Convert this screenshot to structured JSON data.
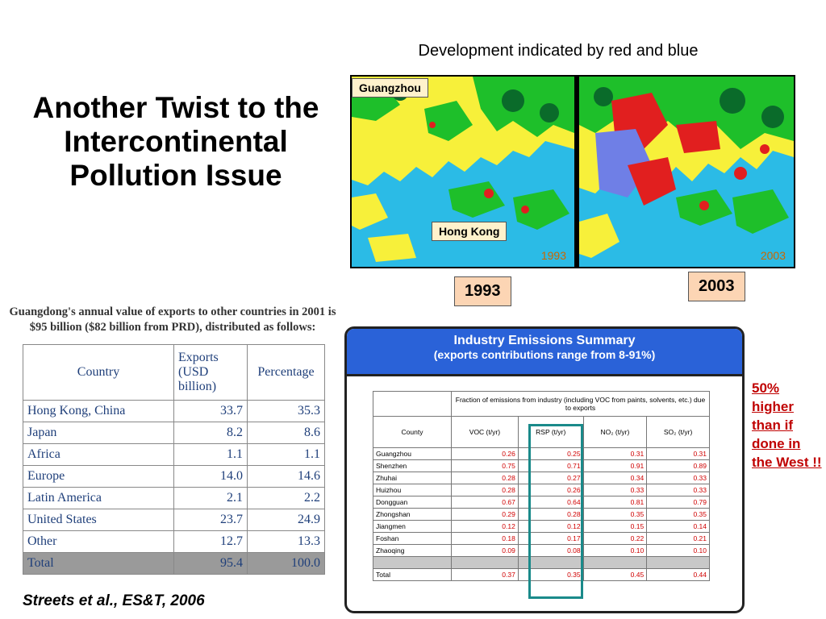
{
  "slide": {
    "title": "Another Twist to the Intercontinental Pollution Issue",
    "citation": "Streets et al., ES&T, 2006"
  },
  "maps": {
    "caption": "Development indicated by red and blue",
    "labels": {
      "guangzhou": "Guangzhou",
      "hong_kong": "Hong Kong"
    },
    "inline_years": [
      "1993",
      "2003"
    ],
    "year_boxes": [
      "1993",
      "2003"
    ]
  },
  "exports": {
    "caption": "Guangdong's annual value of exports to other countries in 2001 is $95 billion ($82 billion from PRD), distributed as follows:",
    "headers": [
      "Country",
      "Exports (USD billion)",
      "Percentage"
    ],
    "rows": [
      [
        "Hong Kong, China",
        "33.7",
        "35.3"
      ],
      [
        "Japan",
        "8.2",
        "8.6"
      ],
      [
        "Africa",
        "1.1",
        "1.1"
      ],
      [
        "Europe",
        "14.0",
        "14.6"
      ],
      [
        "Latin America",
        "2.1",
        "2.2"
      ],
      [
        "United States",
        "23.7",
        "24.9"
      ],
      [
        "Other",
        "12.7",
        "13.3"
      ]
    ],
    "total": [
      "Total",
      "95.4",
      "100.0"
    ]
  },
  "emissions": {
    "title": "Industry Emissions Summary",
    "subtitle": "(exports contributions range from 8-91%)",
    "group_header": "Fraction of emissions from industry (including VOC from paints, solvents, etc.) due to exports",
    "columns": [
      "County",
      "VOC (t/yr)",
      "RSP (t/yr)",
      "NO₂ (t/yr)",
      "SO₂ (t/yr)"
    ],
    "rows": [
      [
        "Guangzhou",
        "0.26",
        "0.25",
        "0.31",
        "0.31"
      ],
      [
        "Shenzhen",
        "0.75",
        "0.71",
        "0.91",
        "0.89"
      ],
      [
        "Zhuhai",
        "0.28",
        "0.27",
        "0.34",
        "0.33"
      ],
      [
        "Huizhou",
        "0.28",
        "0.26",
        "0.33",
        "0.33"
      ],
      [
        "Dongguan",
        "0.67",
        "0.64",
        "0.81",
        "0.79"
      ],
      [
        "Zhongshan",
        "0.29",
        "0.28",
        "0.35",
        "0.35"
      ],
      [
        "Jiangmen",
        "0.12",
        "0.12",
        "0.15",
        "0.14"
      ],
      [
        "Foshan",
        "0.18",
        "0.17",
        "0.22",
        "0.21"
      ],
      [
        "Zhaoqing",
        "0.09",
        "0.08",
        "0.10",
        "0.10"
      ]
    ],
    "total": [
      "Total",
      "0.37",
      "0.35",
      "0.45",
      "0.44"
    ]
  },
  "note": "50% higher than if done in the West !!",
  "colors": {
    "water": "#2bbbe6",
    "land": "#f7f03a",
    "vegetation": "#1ebf2a",
    "dark_vegetation": "#0a6b2a",
    "urban_red": "#e11f1f",
    "urban_blue": "#6f7fe6",
    "header_blue": "#2a62d8",
    "emphasis_red": "#c00000"
  }
}
